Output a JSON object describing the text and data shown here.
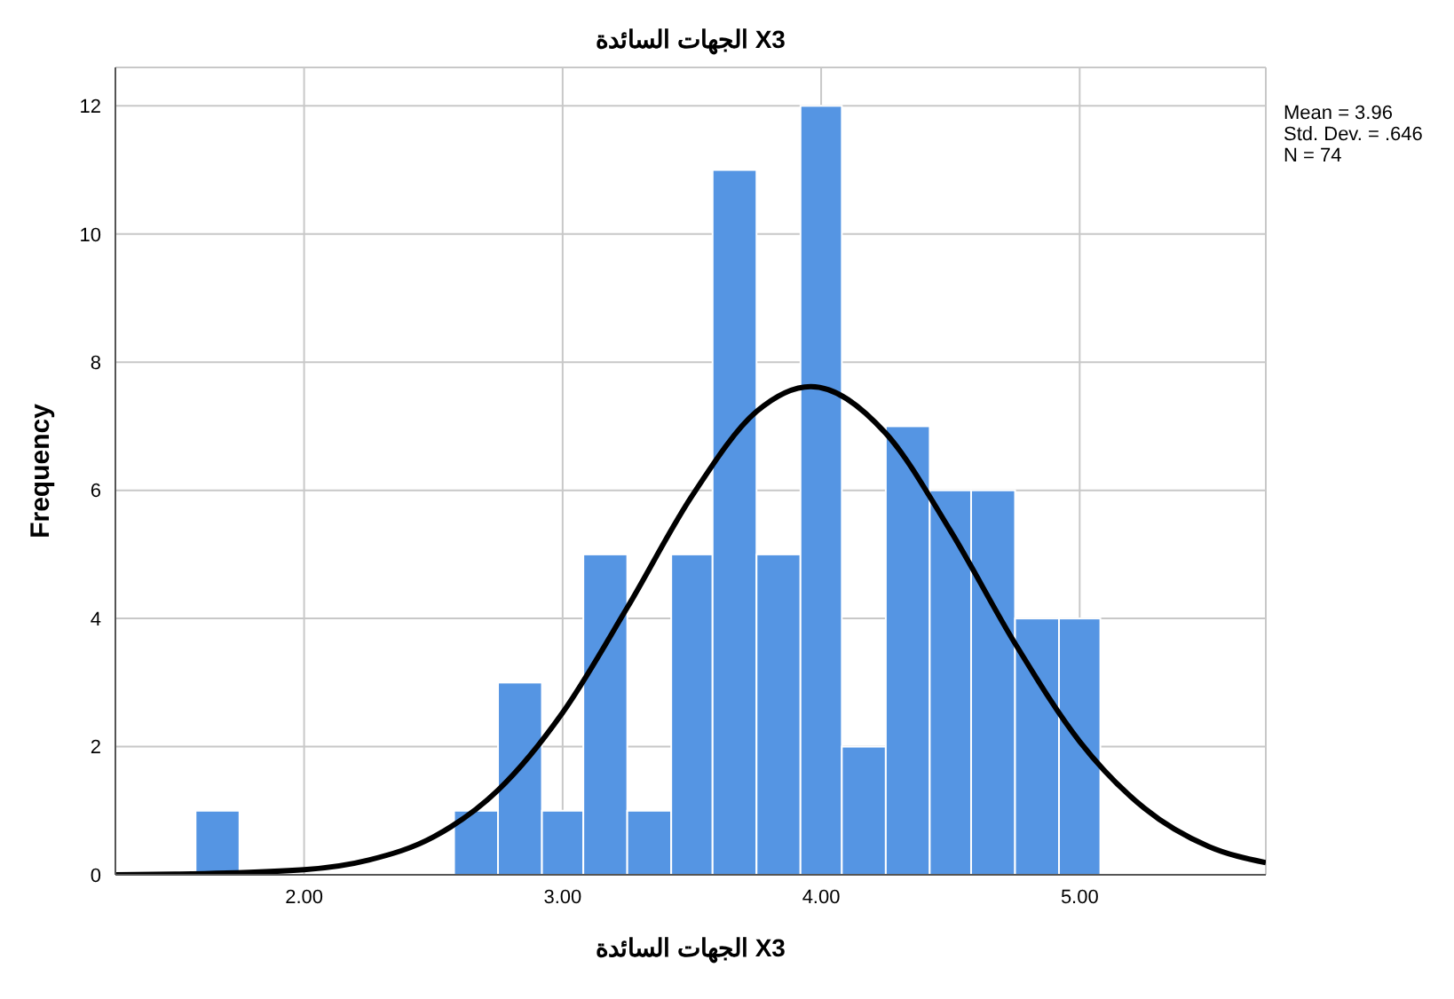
{
  "chart_data": {
    "type": "histogram",
    "title": "الجهات السائدة X3",
    "xlabel": "الجهات السائدة X3",
    "ylabel": "Frequency",
    "bins": [
      1.58,
      1.75,
      2.58,
      2.75,
      2.92,
      3.08,
      3.25,
      3.42,
      3.58,
      3.75,
      3.92,
      4.08,
      4.25,
      4.42,
      4.58,
      4.75,
      4.92,
      5.08
    ],
    "values": [
      1,
      0,
      1,
      3,
      1,
      5,
      1,
      5,
      11,
      5,
      12,
      2,
      7,
      6,
      6,
      4,
      4
    ],
    "color": "#5595e3",
    "series": [
      {
        "type": "line",
        "color": "#000000",
        "marker": "none",
        "x": [
          1.27,
          1.5,
          2.0,
          2.25,
          2.5,
          2.75,
          3.0,
          3.25,
          3.5,
          3.75,
          3.96,
          4.25,
          4.5,
          4.75,
          5.0,
          5.25,
          5.5,
          5.72
        ],
        "values": [
          0.0,
          0.01,
          0.08,
          0.23,
          0.59,
          1.32,
          2.53,
          4.17,
          5.91,
          7.23,
          7.62,
          6.89,
          5.37,
          3.61,
          2.08,
          1.04,
          0.44,
          0.19
        ]
      }
    ],
    "xlim": [
      1.27,
      5.72
    ],
    "xticks": [
      {
        "value": 2,
        "label": "2.00"
      },
      {
        "value": 3,
        "label": "3.00"
      },
      {
        "value": 4,
        "label": "4.00"
      },
      {
        "value": 5,
        "label": "5.00"
      }
    ],
    "ylim": [
      0,
      12.6
    ],
    "yticks": [
      0,
      2,
      4,
      6,
      8,
      10,
      12
    ],
    "grid": true,
    "annotations": [
      "Mean = 3.96",
      "Std. Dev. = .646",
      "N = 74"
    ]
  }
}
